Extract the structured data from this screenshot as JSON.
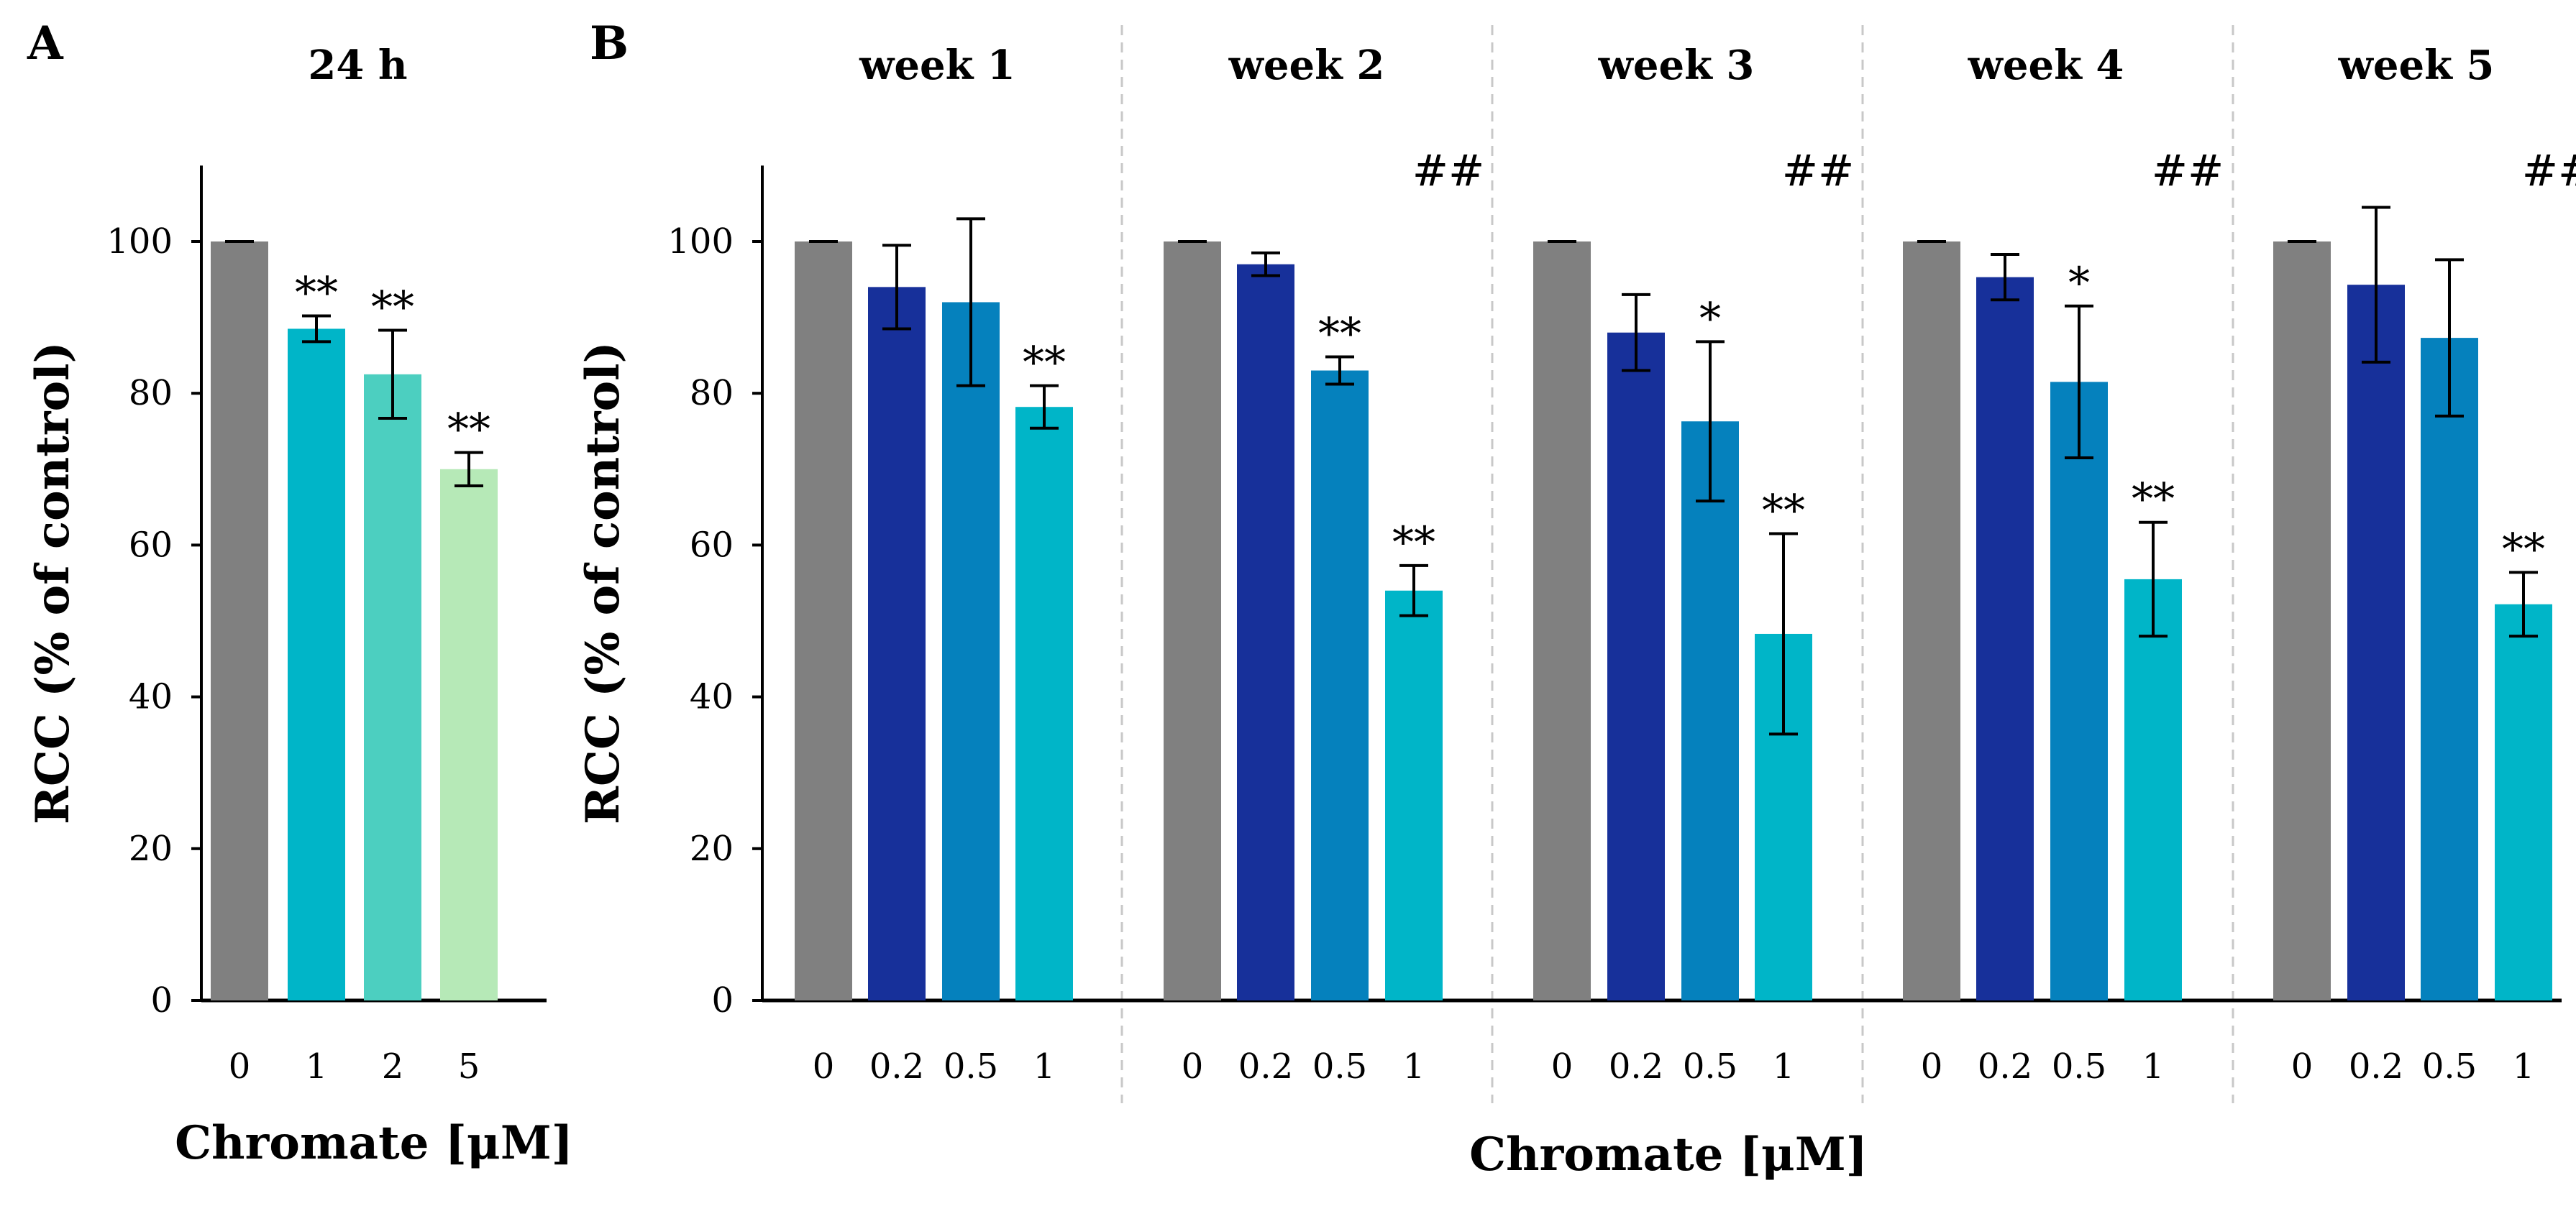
{
  "chart_data": [
    {
      "id": "A",
      "panel_label": "A",
      "type": "bar",
      "ylabel": "RCC (% of control)",
      "xlabel": "Chromate [μM]",
      "ylim": [
        0,
        110
      ],
      "yticks": [
        "0",
        "20",
        "40",
        "60",
        "80",
        "100"
      ],
      "groups": [
        {
          "title": "24 h",
          "bars": [
            {
              "category": "0",
              "value": 100,
              "error": 0,
              "color": "#808080",
              "annotation": ""
            },
            {
              "category": "1",
              "value": 88.5,
              "error": 1.7,
              "color": "#00b5c8",
              "annotation": "**"
            },
            {
              "category": "2",
              "value": 82.5,
              "error": 5.8,
              "color": "#4ccfc0",
              "annotation": "**"
            },
            {
              "category": "5",
              "value": 70,
              "error": 2.2,
              "color": "#b6e9b7",
              "annotation": "**"
            }
          ]
        }
      ]
    },
    {
      "id": "B",
      "panel_label": "B",
      "type": "bar",
      "ylabel": "RCC (% of control)",
      "xlabel": "Chromate [μM]",
      "ylim": [
        0,
        110
      ],
      "yticks": [
        "0",
        "20",
        "40",
        "60",
        "80",
        "100"
      ],
      "groups": [
        {
          "title": "week 1",
          "group_annotation": "",
          "bars": [
            {
              "category": "0",
              "value": 100,
              "error": 0,
              "color": "#808080",
              "annotation": ""
            },
            {
              "category": "0.2",
              "value": 94,
              "error": 5.5,
              "color": "#17309a",
              "annotation": ""
            },
            {
              "category": "0.5",
              "value": 92,
              "error": 11,
              "color": "#0581bd",
              "annotation": ""
            },
            {
              "category": "1",
              "value": 78.2,
              "error": 2.8,
              "color": "#00b5c8",
              "annotation": "**"
            }
          ]
        },
        {
          "title": "week 2",
          "group_annotation": "##",
          "bars": [
            {
              "category": "0",
              "value": 100,
              "error": 0,
              "color": "#808080",
              "annotation": ""
            },
            {
              "category": "0.2",
              "value": 97,
              "error": 1.5,
              "color": "#17309a",
              "annotation": ""
            },
            {
              "category": "0.5",
              "value": 83,
              "error": 1.8,
              "color": "#0581bd",
              "annotation": "**"
            },
            {
              "category": "1",
              "value": 54,
              "error": 3.3,
              "color": "#00b5c8",
              "annotation": "**"
            }
          ]
        },
        {
          "title": "week 3",
          "group_annotation": "##",
          "bars": [
            {
              "category": "0",
              "value": 100,
              "error": 0,
              "color": "#808080",
              "annotation": ""
            },
            {
              "category": "0.2",
              "value": 88,
              "error": 5,
              "color": "#17309a",
              "annotation": ""
            },
            {
              "category": "0.5",
              "value": 76.3,
              "error": 10.5,
              "color": "#0581bd",
              "annotation": "*"
            },
            {
              "category": "1",
              "value": 48.3,
              "error": 13.2,
              "color": "#00b5c8",
              "annotation": "**"
            }
          ]
        },
        {
          "title": "week 4",
          "group_annotation": "##",
          "bars": [
            {
              "category": "0",
              "value": 100,
              "error": 0,
              "color": "#808080",
              "annotation": ""
            },
            {
              "category": "0.2",
              "value": 95.3,
              "error": 3,
              "color": "#17309a",
              "annotation": ""
            },
            {
              "category": "0.5",
              "value": 81.5,
              "error": 10,
              "color": "#0581bd",
              "annotation": "*"
            },
            {
              "category": "1",
              "value": 55.5,
              "error": 7.5,
              "color": "#00b5c8",
              "annotation": "**"
            }
          ]
        },
        {
          "title": "week 5",
          "group_annotation": "##",
          "bars": [
            {
              "category": "0",
              "value": 100,
              "error": 0,
              "color": "#808080",
              "annotation": ""
            },
            {
              "category": "0.2",
              "value": 94.3,
              "error": 10.2,
              "color": "#17309a",
              "annotation": ""
            },
            {
              "category": "0.5",
              "value": 87.3,
              "error": 10.3,
              "color": "#0581bd",
              "annotation": ""
            },
            {
              "category": "1",
              "value": 52.2,
              "error": 4.2,
              "color": "#00b5c8",
              "annotation": "**"
            }
          ]
        }
      ]
    }
  ]
}
